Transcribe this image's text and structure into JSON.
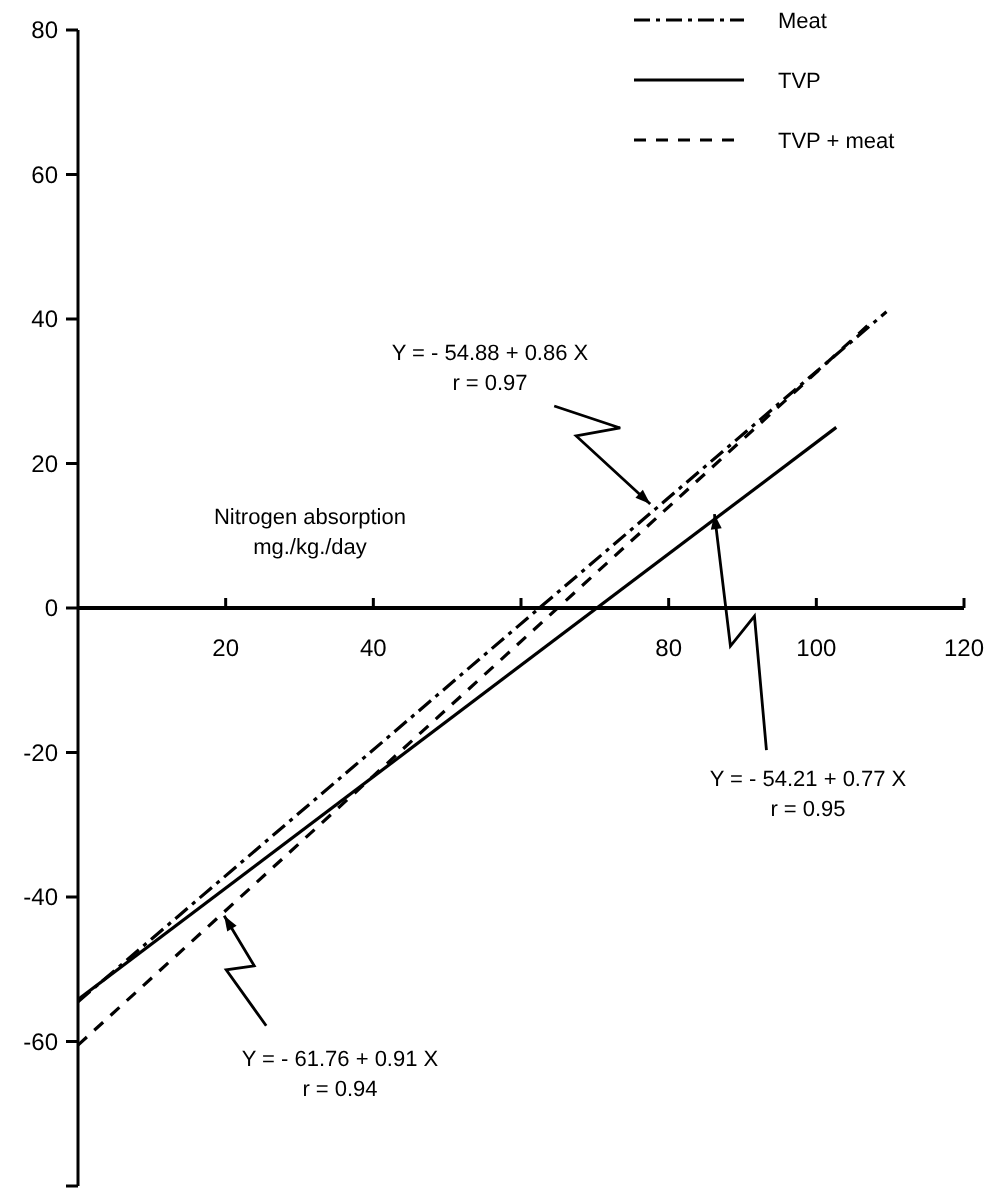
{
  "chart_data": {
    "type": "line",
    "xlabel": "Nitrogen absorption\nmg./kg./day",
    "xlim": [
      0,
      120
    ],
    "ylim": [
      -80,
      80
    ],
    "xticks": [
      20,
      40,
      {
        "value": 60,
        "label": null
      },
      80,
      100,
      120
    ],
    "yticks": [
      80,
      60,
      40,
      20,
      0,
      -20,
      -40,
      -60,
      {
        "value": -80,
        "label": null
      }
    ],
    "series": [
      {
        "name": "Meat",
        "color": "#000000",
        "line_style": "dashdot",
        "x": [
          0,
          109.5
        ],
        "values": [
          -54.5,
          41
        ]
      },
      {
        "name": "TVP",
        "color": "#000000",
        "line_style": "solid",
        "x": [
          0,
          102.7
        ],
        "values": [
          -54.2,
          25
        ]
      },
      {
        "name": "TVP + meat",
        "color": "#000000",
        "line_style": "dashed",
        "x": [
          0,
          107.6
        ],
        "values": [
          -60.5,
          39.7
        ]
      }
    ],
    "legend": "top right",
    "grid": false,
    "annotations": [
      {
        "text": "Y = - 54.88 + 0.86 X\nr = 0.97",
        "x": 77.5,
        "y": 14.4
      },
      {
        "text": "Y = - 54.21 + 0.77 X\nr = 0.95",
        "x": 86.2,
        "y": 13
      },
      {
        "text": "Y = - 61.76 + 0.91 X\nr = 0.94",
        "x": 19.8,
        "y": -42.6
      }
    ]
  }
}
